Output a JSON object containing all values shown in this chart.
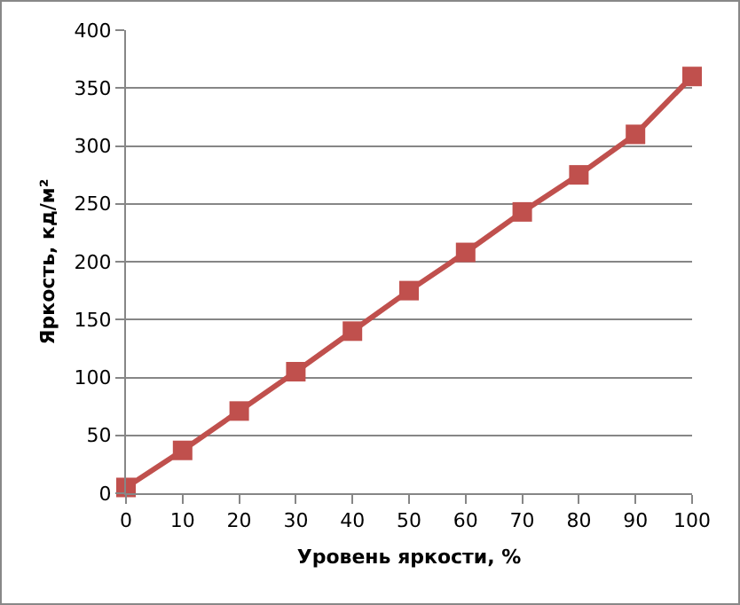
{
  "chart_data": {
    "type": "line",
    "xlabel": "Уровень яркости, %",
    "ylabel": "Яркость, кд/м²",
    "x": [
      0,
      10,
      20,
      30,
      40,
      50,
      60,
      70,
      80,
      90,
      100
    ],
    "series": [
      {
        "color": "#c0504d",
        "values": [
          5,
          37,
          71,
          105,
          140,
          175,
          208,
          243,
          275,
          310,
          360
        ]
      }
    ],
    "xlim": [
      0,
      100
    ],
    "xticks": [
      0,
      10,
      20,
      30,
      40,
      50,
      60,
      70,
      80,
      90,
      100
    ],
    "ylim": [
      0,
      400
    ],
    "yticks": [
      0,
      50,
      100,
      150,
      200,
      250,
      300,
      350,
      400
    ],
    "grid": "y",
    "marker": "square",
    "line_style": "solid"
  }
}
